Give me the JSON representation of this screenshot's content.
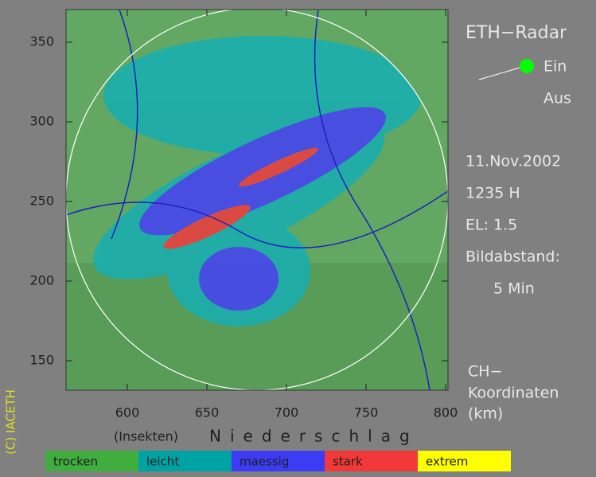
{
  "title": "ETH−Radar",
  "toggle": {
    "on": "Ein",
    "off": "Aus"
  },
  "info": [
    "11.Nov.2002",
    "1235 H",
    "EL: 1.5",
    "Bildabstand:",
    "5 Min"
  ],
  "coordinates": {
    "label_lines": [
      "CH−",
      "Koordinaten",
      "(km)"
    ],
    "xlim": [
      561.5,
      801.5
    ],
    "ylim": [
      131.5,
      370.5
    ],
    "xticks": [
      600,
      650,
      700,
      750,
      800
    ],
    "yticks": [
      150,
      200,
      250,
      300,
      350
    ]
  },
  "copyright": "(C) IACETH",
  "legend": {
    "prefix": "(Insekten)",
    "title": "Niederschlag",
    "items": [
      {
        "label": "trocken",
        "color": "#3fae3f"
      },
      {
        "label": "leicht",
        "color": "#00a3a3"
      },
      {
        "label": "maessig",
        "color": "#3c3cf5"
      },
      {
        "label": "stark",
        "color": "#f23838"
      },
      {
        "label": "extrem",
        "color": "#ffff00"
      }
    ]
  }
}
